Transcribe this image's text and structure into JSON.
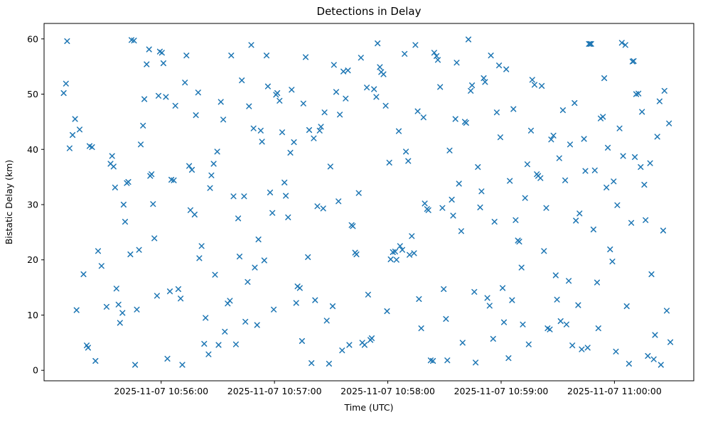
{
  "chart": {
    "title": "Detections in Delay",
    "xlabel": "Time (UTC)",
    "ylabel": "Bistatic Delay (km)"
  },
  "chart_data": {
    "type": "scatter",
    "title": "Detections in Delay",
    "xlabel": "Time (UTC)",
    "ylabel": "Bistatic Delay (km)",
    "marker": "x",
    "marker_color": "#1f77b4",
    "grid": false,
    "legend": "none",
    "x_base": "2025-11-07 10:55:00",
    "x_unit": "seconds_since_x_base",
    "xlim": [
      -2,
      342
    ],
    "ylim": [
      -1.9,
      62.8
    ],
    "y_ticks": [
      0,
      10,
      20,
      30,
      40,
      50,
      60
    ],
    "x_ticks": [
      {
        "t": 60,
        "label": "2025-11-07 10:56:00"
      },
      {
        "t": 120,
        "label": "2025-11-07 10:57:00"
      },
      {
        "t": 180,
        "label": "2025-11-07 10:58:00"
      },
      {
        "t": 240,
        "label": "2025-11-07 10:59:00"
      },
      {
        "t": 300,
        "label": "2025-11-07 11:00:00"
      }
    ],
    "points": [
      [
        8.4,
        50.2
      ],
      [
        9.6,
        51.9
      ],
      [
        10.2,
        59.6
      ],
      [
        11.5,
        40.2
      ],
      [
        13.1,
        42.6
      ],
      [
        14.4,
        45.5
      ],
      [
        15.2,
        10.9
      ],
      [
        16.8,
        43.6
      ],
      [
        18.9,
        17.4
      ],
      [
        20.6,
        4.5
      ],
      [
        21.3,
        4.1
      ],
      [
        22.1,
        40.6
      ],
      [
        23.4,
        40.4
      ],
      [
        25.2,
        1.7
      ],
      [
        26.6,
        21.6
      ],
      [
        28.4,
        18.9
      ],
      [
        31.1,
        11.5
      ],
      [
        33.2,
        37.4
      ],
      [
        34.0,
        38.8
      ],
      [
        34.8,
        36.9
      ],
      [
        35.6,
        33.1
      ],
      [
        36.3,
        14.8
      ],
      [
        37.4,
        11.9
      ],
      [
        38.2,
        8.6
      ],
      [
        39.5,
        10.4
      ],
      [
        40.1,
        30.0
      ],
      [
        40.9,
        26.9
      ],
      [
        41.8,
        33.9
      ],
      [
        42.6,
        34.1
      ],
      [
        43.7,
        21.0
      ],
      [
        44.3,
        59.8
      ],
      [
        45.6,
        59.7
      ],
      [
        46.2,
        1.0
      ],
      [
        47.1,
        11.0
      ],
      [
        48.3,
        21.8
      ],
      [
        49.2,
        40.9
      ],
      [
        50.4,
        44.3
      ],
      [
        51.1,
        49.1
      ],
      [
        52.3,
        55.4
      ],
      [
        53.6,
        58.1
      ],
      [
        54.2,
        35.2
      ],
      [
        54.9,
        35.5
      ],
      [
        55.7,
        30.1
      ],
      [
        56.4,
        23.9
      ],
      [
        57.8,
        13.5
      ],
      [
        58.6,
        49.7
      ],
      [
        59.3,
        57.7
      ],
      [
        60.4,
        57.5
      ],
      [
        61.2,
        55.6
      ],
      [
        62.5,
        49.5
      ],
      [
        63.3,
        2.1
      ],
      [
        64.6,
        14.3
      ],
      [
        65.4,
        34.5
      ],
      [
        66.7,
        34.4
      ],
      [
        67.5,
        47.9
      ],
      [
        69.1,
        14.7
      ],
      [
        70.3,
        13.0
      ],
      [
        71.2,
        1.0
      ],
      [
        72.6,
        52.1
      ],
      [
        73.4,
        57.0
      ],
      [
        74.8,
        37.0
      ],
      [
        75.5,
        29.0
      ],
      [
        76.3,
        36.3
      ],
      [
        77.7,
        28.2
      ],
      [
        78.4,
        46.2
      ],
      [
        79.6,
        50.3
      ],
      [
        80.2,
        20.3
      ],
      [
        81.4,
        22.5
      ],
      [
        82.8,
        4.8
      ],
      [
        83.5,
        9.5
      ],
      [
        85.1,
        2.9
      ],
      [
        85.9,
        33.0
      ],
      [
        86.6,
        35.3
      ],
      [
        87.8,
        37.4
      ],
      [
        88.5,
        17.3
      ],
      [
        89.7,
        39.6
      ],
      [
        90.4,
        4.6
      ],
      [
        91.6,
        48.6
      ],
      [
        92.9,
        45.4
      ],
      [
        93.7,
        7.0
      ],
      [
        95.2,
        12.1
      ],
      [
        96.4,
        12.6
      ],
      [
        97.1,
        57.0
      ],
      [
        98.3,
        31.5
      ],
      [
        99.6,
        4.7
      ],
      [
        100.8,
        27.5
      ],
      [
        101.5,
        20.6
      ],
      [
        102.7,
        52.5
      ],
      [
        103.9,
        31.5
      ],
      [
        104.6,
        8.8
      ],
      [
        105.8,
        16.0
      ],
      [
        106.5,
        47.8
      ],
      [
        107.7,
        58.9
      ],
      [
        108.9,
        43.8
      ],
      [
        109.6,
        18.6
      ],
      [
        110.8,
        8.2
      ],
      [
        111.5,
        23.7
      ],
      [
        112.7,
        43.4
      ],
      [
        113.4,
        41.4
      ],
      [
        114.6,
        19.9
      ],
      [
        115.8,
        57.0
      ],
      [
        116.5,
        51.4
      ],
      [
        117.7,
        32.2
      ],
      [
        118.9,
        28.5
      ],
      [
        119.6,
        11.0
      ],
      [
        120.8,
        49.9
      ],
      [
        121.5,
        50.2
      ],
      [
        122.7,
        48.8
      ],
      [
        124.1,
        43.1
      ],
      [
        125.3,
        34.0
      ],
      [
        126.0,
        31.6
      ],
      [
        127.2,
        27.7
      ],
      [
        128.4,
        39.4
      ],
      [
        129.1,
        50.8
      ],
      [
        130.3,
        41.3
      ],
      [
        131.5,
        12.2
      ],
      [
        132.2,
        15.2
      ],
      [
        133.4,
        14.9
      ],
      [
        134.6,
        5.3
      ],
      [
        135.3,
        48.3
      ],
      [
        136.5,
        56.7
      ],
      [
        137.7,
        20.5
      ],
      [
        138.4,
        43.5
      ],
      [
        139.6,
        1.3
      ],
      [
        140.8,
        42.0
      ],
      [
        141.5,
        12.7
      ],
      [
        142.7,
        29.7
      ],
      [
        143.9,
        43.4
      ],
      [
        144.6,
        44.1
      ],
      [
        145.8,
        29.3
      ],
      [
        146.5,
        46.7
      ],
      [
        147.7,
        9.0
      ],
      [
        148.9,
        1.2
      ],
      [
        149.6,
        36.9
      ],
      [
        150.8,
        11.6
      ],
      [
        151.5,
        55.3
      ],
      [
        152.7,
        50.4
      ],
      [
        153.9,
        30.6
      ],
      [
        154.6,
        46.3
      ],
      [
        155.8,
        3.6
      ],
      [
        156.5,
        54.1
      ],
      [
        157.7,
        49.2
      ],
      [
        158.9,
        54.3
      ],
      [
        159.6,
        4.6
      ],
      [
        160.8,
        26.3
      ],
      [
        161.5,
        26.1
      ],
      [
        162.7,
        21.3
      ],
      [
        163.4,
        21.0
      ],
      [
        164.6,
        32.1
      ],
      [
        165.8,
        56.6
      ],
      [
        166.5,
        5.0
      ],
      [
        167.7,
        4.6
      ],
      [
        168.9,
        51.2
      ],
      [
        169.6,
        13.7
      ],
      [
        170.8,
        5.5
      ],
      [
        171.5,
        5.8
      ],
      [
        172.7,
        50.9
      ],
      [
        173.9,
        49.5
      ],
      [
        174.6,
        59.2
      ],
      [
        175.8,
        54.9
      ],
      [
        176.5,
        54.0
      ],
      [
        177.7,
        53.6
      ],
      [
        178.9,
        47.9
      ],
      [
        179.6,
        10.7
      ],
      [
        180.8,
        37.6
      ],
      [
        181.5,
        20.1
      ],
      [
        182.7,
        21.4
      ],
      [
        183.9,
        21.5
      ],
      [
        184.6,
        20.0
      ],
      [
        185.8,
        43.3
      ],
      [
        186.5,
        22.5
      ],
      [
        187.7,
        21.8
      ],
      [
        188.9,
        57.3
      ],
      [
        189.6,
        39.6
      ],
      [
        190.8,
        37.9
      ],
      [
        191.5,
        20.9
      ],
      [
        192.7,
        24.3
      ],
      [
        193.9,
        21.2
      ],
      [
        194.6,
        58.9
      ],
      [
        195.8,
        46.9
      ],
      [
        196.5,
        12.9
      ],
      [
        197.7,
        7.6
      ],
      [
        198.9,
        45.8
      ],
      [
        199.6,
        30.2
      ],
      [
        200.8,
        29.2
      ],
      [
        201.5,
        29.0
      ],
      [
        202.7,
        1.8
      ],
      [
        203.9,
        1.7
      ],
      [
        204.6,
        57.5
      ],
      [
        205.8,
        56.9
      ],
      [
        206.5,
        56.2
      ],
      [
        207.7,
        51.3
      ],
      [
        208.9,
        29.4
      ],
      [
        209.6,
        14.7
      ],
      [
        210.8,
        9.3
      ],
      [
        211.5,
        1.8
      ],
      [
        212.7,
        39.8
      ],
      [
        213.9,
        30.9
      ],
      [
        214.6,
        28.0
      ],
      [
        215.8,
        45.5
      ],
      [
        216.5,
        55.7
      ],
      [
        217.7,
        33.8
      ],
      [
        218.9,
        25.2
      ],
      [
        219.6,
        5.0
      ],
      [
        220.8,
        45.0
      ],
      [
        221.5,
        44.8
      ],
      [
        222.7,
        59.9
      ],
      [
        223.9,
        50.6
      ],
      [
        224.6,
        51.6
      ],
      [
        225.8,
        14.2
      ],
      [
        226.5,
        1.4
      ],
      [
        227.7,
        36.8
      ],
      [
        228.9,
        29.5
      ],
      [
        229.6,
        32.4
      ],
      [
        230.8,
        52.9
      ],
      [
        231.5,
        52.2
      ],
      [
        232.7,
        13.1
      ],
      [
        233.9,
        11.7
      ],
      [
        234.6,
        57.0
      ],
      [
        235.8,
        5.7
      ],
      [
        236.5,
        26.9
      ],
      [
        237.7,
        46.7
      ],
      [
        238.9,
        55.2
      ],
      [
        239.6,
        42.2
      ],
      [
        240.8,
        14.9
      ],
      [
        241.5,
        8.7
      ],
      [
        242.7,
        54.5
      ],
      [
        243.9,
        2.2
      ],
      [
        244.6,
        34.3
      ],
      [
        245.8,
        12.7
      ],
      [
        246.5,
        47.3
      ],
      [
        247.7,
        27.2
      ],
      [
        248.9,
        23.5
      ],
      [
        249.6,
        23.3
      ],
      [
        250.8,
        18.6
      ],
      [
        251.5,
        8.3
      ],
      [
        252.7,
        31.2
      ],
      [
        253.9,
        37.3
      ],
      [
        254.6,
        4.7
      ],
      [
        255.8,
        43.4
      ],
      [
        256.5,
        52.6
      ],
      [
        257.7,
        51.7
      ],
      [
        258.9,
        35.5
      ],
      [
        259.6,
        35.2
      ],
      [
        260.8,
        34.8
      ],
      [
        261.5,
        51.5
      ],
      [
        262.7,
        21.6
      ],
      [
        263.9,
        29.4
      ],
      [
        264.6,
        7.6
      ],
      [
        265.8,
        7.4
      ],
      [
        266.5,
        41.8
      ],
      [
        267.7,
        42.5
      ],
      [
        268.9,
        17.2
      ],
      [
        269.6,
        12.8
      ],
      [
        270.8,
        38.4
      ],
      [
        271.5,
        8.9
      ],
      [
        272.7,
        47.1
      ],
      [
        273.9,
        34.4
      ],
      [
        274.6,
        8.3
      ],
      [
        275.8,
        16.2
      ],
      [
        276.5,
        40.9
      ],
      [
        277.7,
        4.5
      ],
      [
        278.9,
        48.4
      ],
      [
        279.6,
        27.1
      ],
      [
        280.8,
        11.8
      ],
      [
        281.5,
        28.4
      ],
      [
        282.7,
        3.8
      ],
      [
        283.9,
        41.9
      ],
      [
        284.6,
        36.1
      ],
      [
        285.8,
        4.1
      ],
      [
        286.5,
        59.1
      ],
      [
        287.1,
        59.1
      ],
      [
        287.7,
        59.1
      ],
      [
        288.9,
        25.5
      ],
      [
        289.6,
        36.2
      ],
      [
        290.8,
        15.9
      ],
      [
        291.5,
        7.6
      ],
      [
        292.7,
        45.6
      ],
      [
        293.9,
        45.9
      ],
      [
        294.6,
        52.9
      ],
      [
        295.8,
        33.1
      ],
      [
        296.5,
        40.3
      ],
      [
        297.7,
        21.9
      ],
      [
        298.9,
        19.7
      ],
      [
        299.6,
        34.2
      ],
      [
        300.8,
        3.4
      ],
      [
        301.5,
        29.9
      ],
      [
        302.7,
        43.8
      ],
      [
        303.9,
        59.3
      ],
      [
        304.6,
        38.8
      ],
      [
        305.8,
        58.9
      ],
      [
        306.5,
        11.6
      ],
      [
        307.7,
        1.2
      ],
      [
        308.9,
        26.7
      ],
      [
        309.6,
        55.9
      ],
      [
        310.2,
        56.0
      ],
      [
        310.8,
        38.6
      ],
      [
        311.5,
        50.0
      ],
      [
        312.7,
        50.1
      ],
      [
        313.9,
        36.8
      ],
      [
        314.6,
        46.8
      ],
      [
        315.8,
        33.6
      ],
      [
        316.5,
        27.2
      ],
      [
        317.7,
        2.6
      ],
      [
        318.9,
        37.5
      ],
      [
        319.6,
        17.4
      ],
      [
        320.8,
        2.0
      ],
      [
        321.5,
        6.4
      ],
      [
        322.7,
        42.3
      ],
      [
        323.9,
        48.7
      ],
      [
        324.6,
        1.0
      ],
      [
        325.8,
        25.3
      ],
      [
        326.5,
        50.6
      ],
      [
        327.7,
        10.8
      ],
      [
        328.9,
        44.7
      ],
      [
        329.6,
        5.1
      ]
    ]
  }
}
